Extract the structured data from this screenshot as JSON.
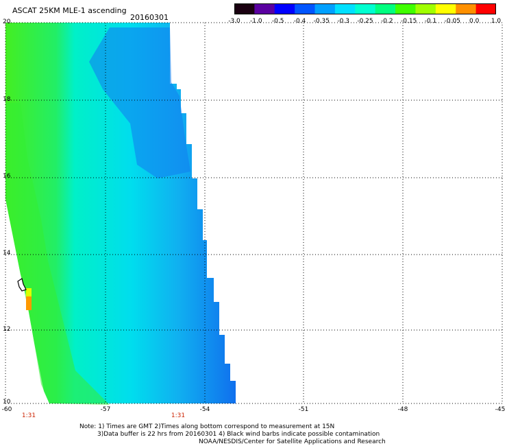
{
  "title": "ASCAT 25KM MLE-1 ascending",
  "date": "20160301",
  "colorbar": {
    "ticks": [
      "-3.0",
      "-1.0",
      "-0.5",
      "-0.4",
      "-0.35",
      "-0.3",
      "-0.25",
      "-0.2",
      "-0.15",
      "-0.1",
      "-0.05",
      "0.0",
      "1.0"
    ],
    "colors": [
      "#1a0010",
      "#5a00a0",
      "#0000ff",
      "#0055ff",
      "#00a0ff",
      "#00e0ff",
      "#00ffd0",
      "#00ff80",
      "#40ff00",
      "#a0ff00",
      "#ffff00",
      "#ff9000",
      "#ff0000"
    ]
  },
  "map": {
    "lat_labels": [
      "20",
      "18",
      "16",
      "14",
      "12",
      "10"
    ],
    "lon_labels": [
      "-60",
      "-57",
      "-54",
      "-51",
      "-48",
      "-45"
    ],
    "time_labels": [
      "1:31",
      "1:31"
    ]
  },
  "notes": [
    "Note: 1) Times are GMT 2)Times along bottom correspond to measurement at 15N",
    "3)Data buffer is 22 hrs from 20160301 4) Black wind barbs indicate possible contamination",
    "NOAA/NESDIS/Center for Satellite Applications and Research"
  ]
}
